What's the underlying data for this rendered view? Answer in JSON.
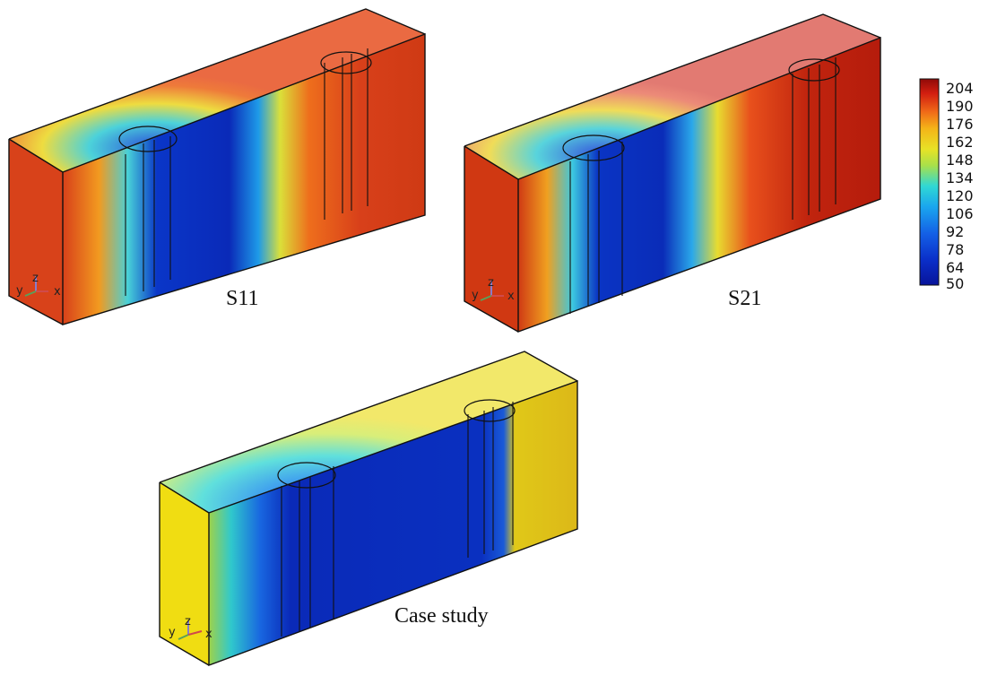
{
  "panels": [
    {
      "id": "s11",
      "label": "S11",
      "colors": {
        "left": "#d23a10",
        "top": "#e8623e"
      }
    },
    {
      "id": "s21",
      "label": "S21",
      "colors": {
        "left": "#cc3410",
        "top": "#e2706a"
      }
    },
    {
      "id": "case",
      "label": "Case study",
      "colors": {
        "left": "#f0dd10",
        "top": "#e8d420"
      }
    }
  ],
  "axes_triad": {
    "x": "x",
    "y": "y",
    "z": "z"
  },
  "colorbar": {
    "ticks": [
      "204",
      "190",
      "176",
      "162",
      "148",
      "134",
      "120",
      "106",
      "92",
      "78",
      "64",
      "50"
    ],
    "colors": [
      "#8f0a08",
      "#d21e10",
      "#f06a18",
      "#f4b418",
      "#e8e226",
      "#a8e04a",
      "#30d8d4",
      "#1aa6ee",
      "#1460e6",
      "#0a2ec8",
      "#08149a"
    ]
  }
}
